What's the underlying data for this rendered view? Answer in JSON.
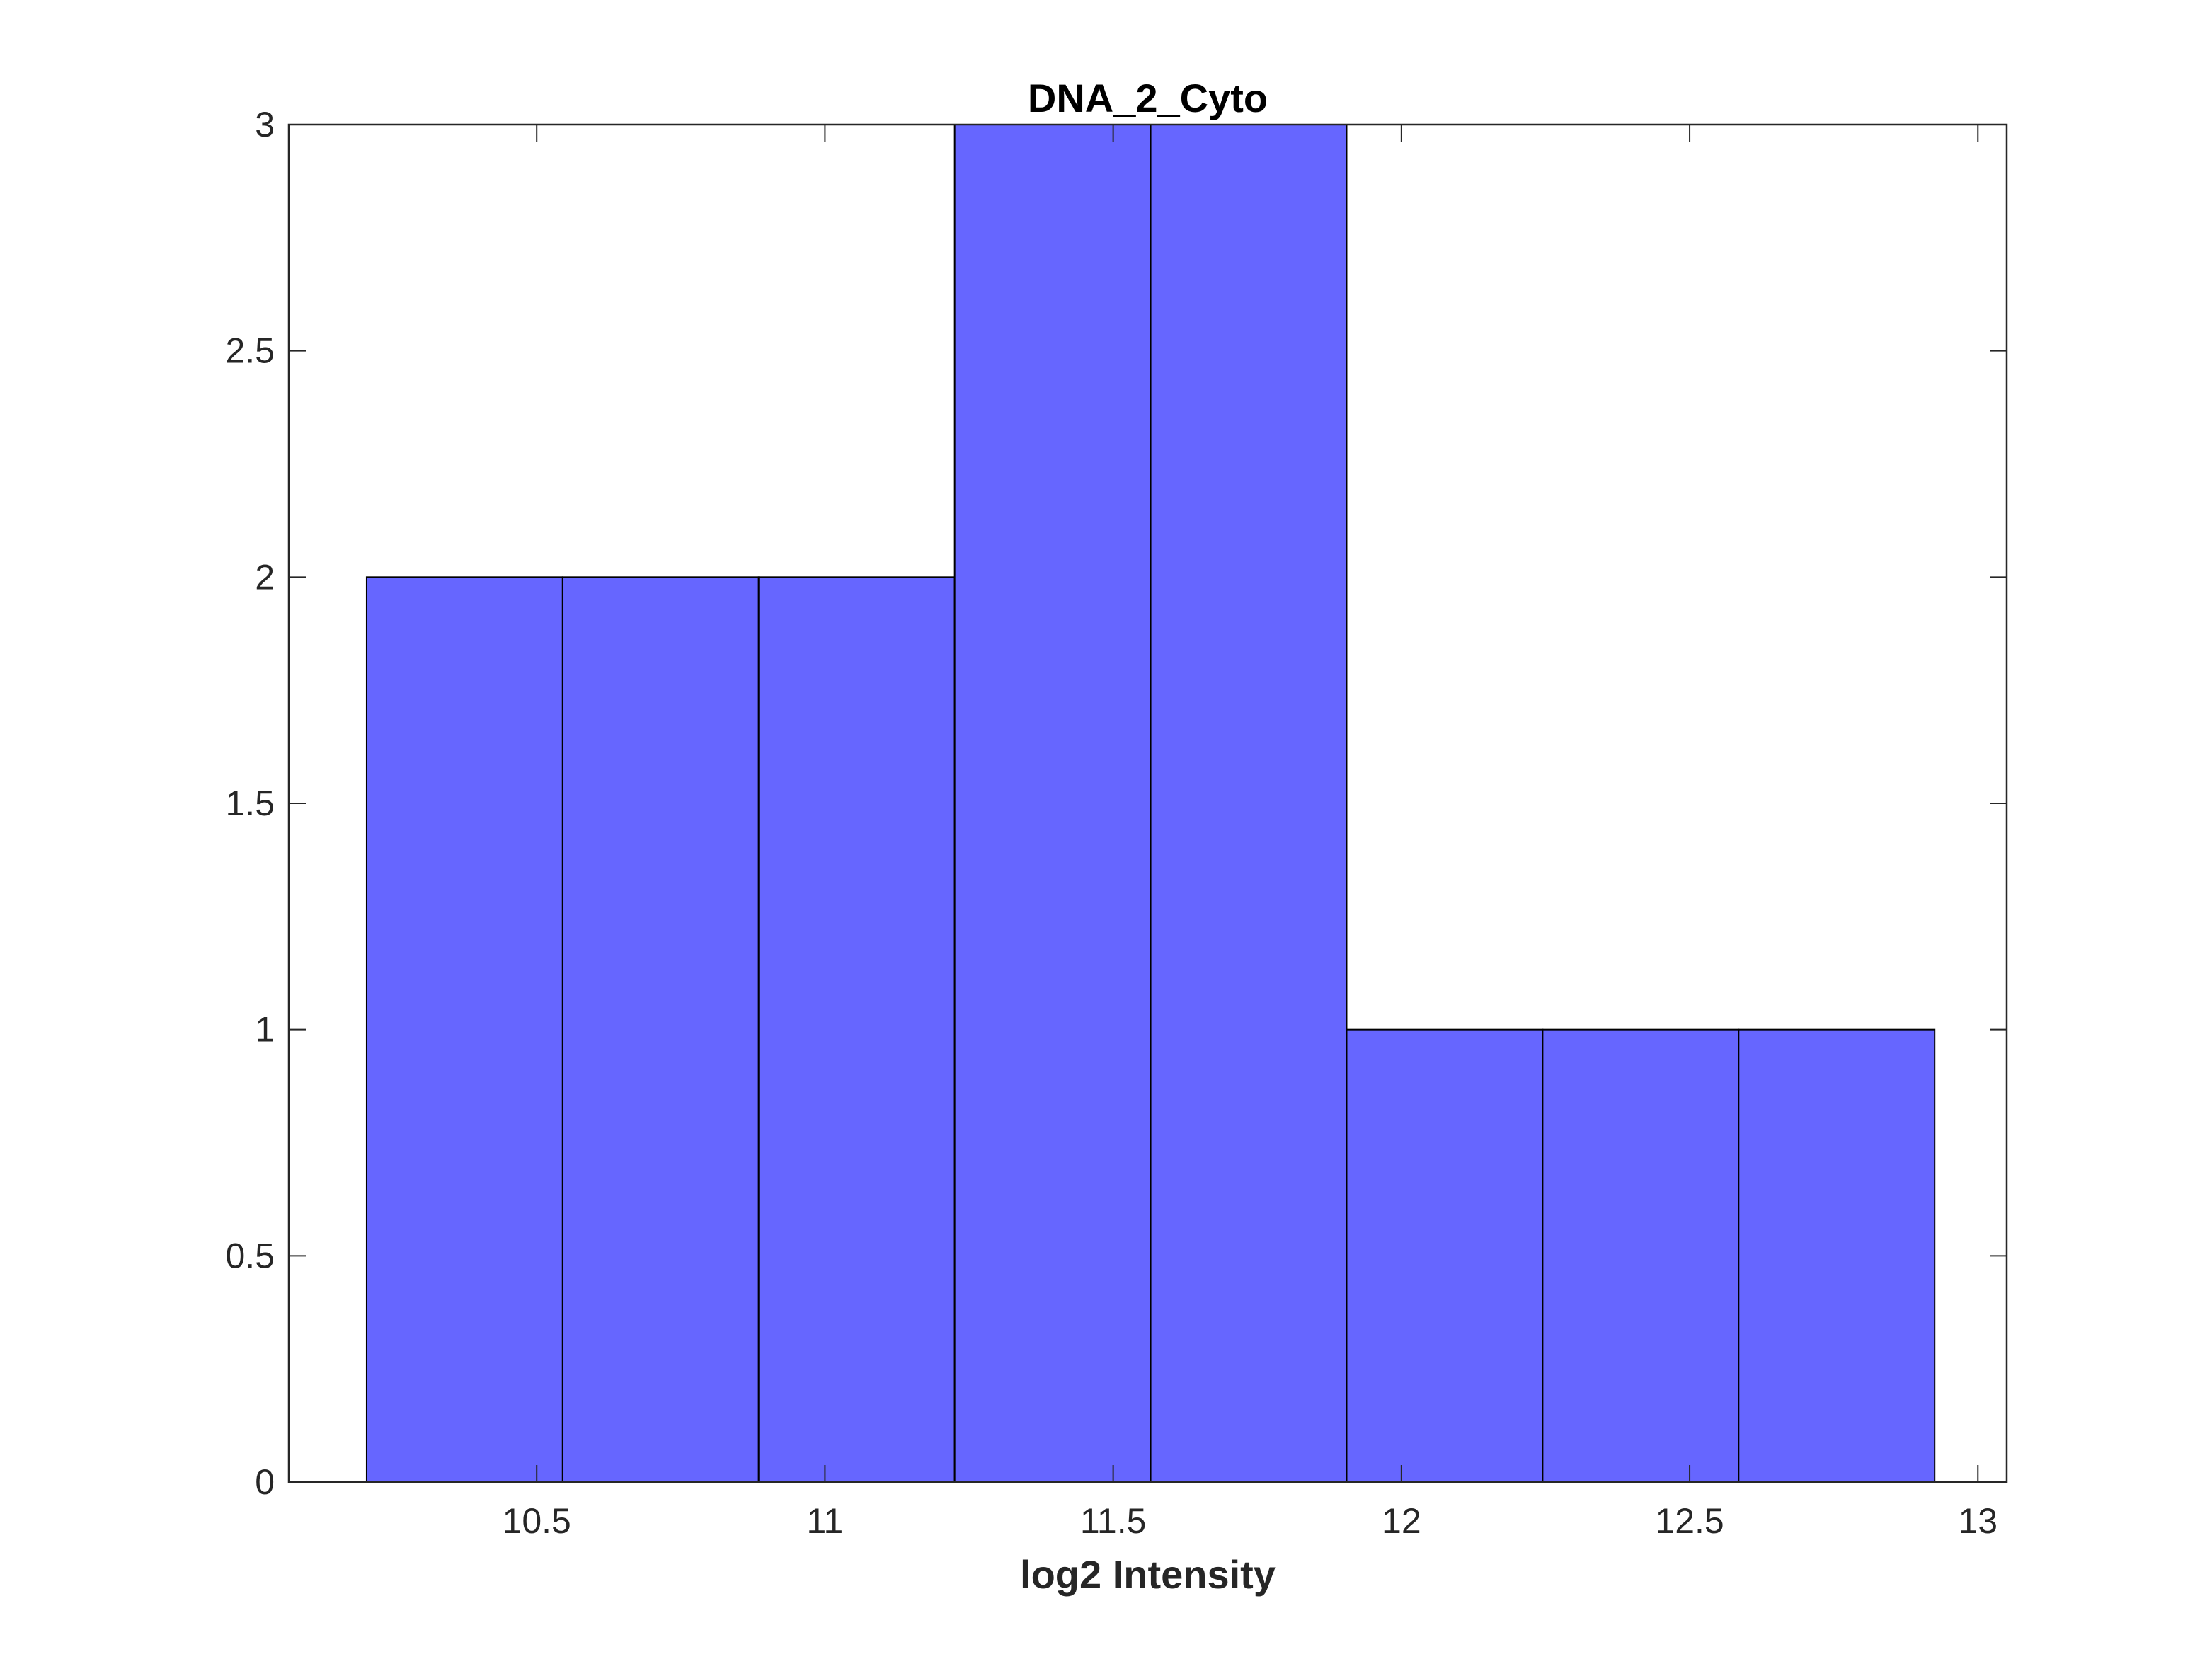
{
  "chart_data": {
    "type": "bar",
    "title": "DNA_2_Cyto",
    "xlabel": "log2 Intensity",
    "ylabel": "",
    "xlim": [
      10.07,
      13.05
    ],
    "ylim": [
      0,
      3
    ],
    "x_ticks": [
      "10.5",
      "11",
      "11.5",
      "12",
      "12.5",
      "13"
    ],
    "y_ticks": [
      "0",
      "0.5",
      "1",
      "1.5",
      "2",
      "2.5",
      "3"
    ],
    "bin_edges": [
      10.205,
      10.545,
      10.885,
      11.225,
      11.565,
      11.905,
      12.245,
      12.585,
      12.925
    ],
    "values": [
      2,
      2,
      2,
      3,
      3,
      1,
      1,
      1
    ],
    "bar_color": "#6666ff",
    "bar_edge_color": "#000000",
    "grid": false,
    "box": true
  }
}
